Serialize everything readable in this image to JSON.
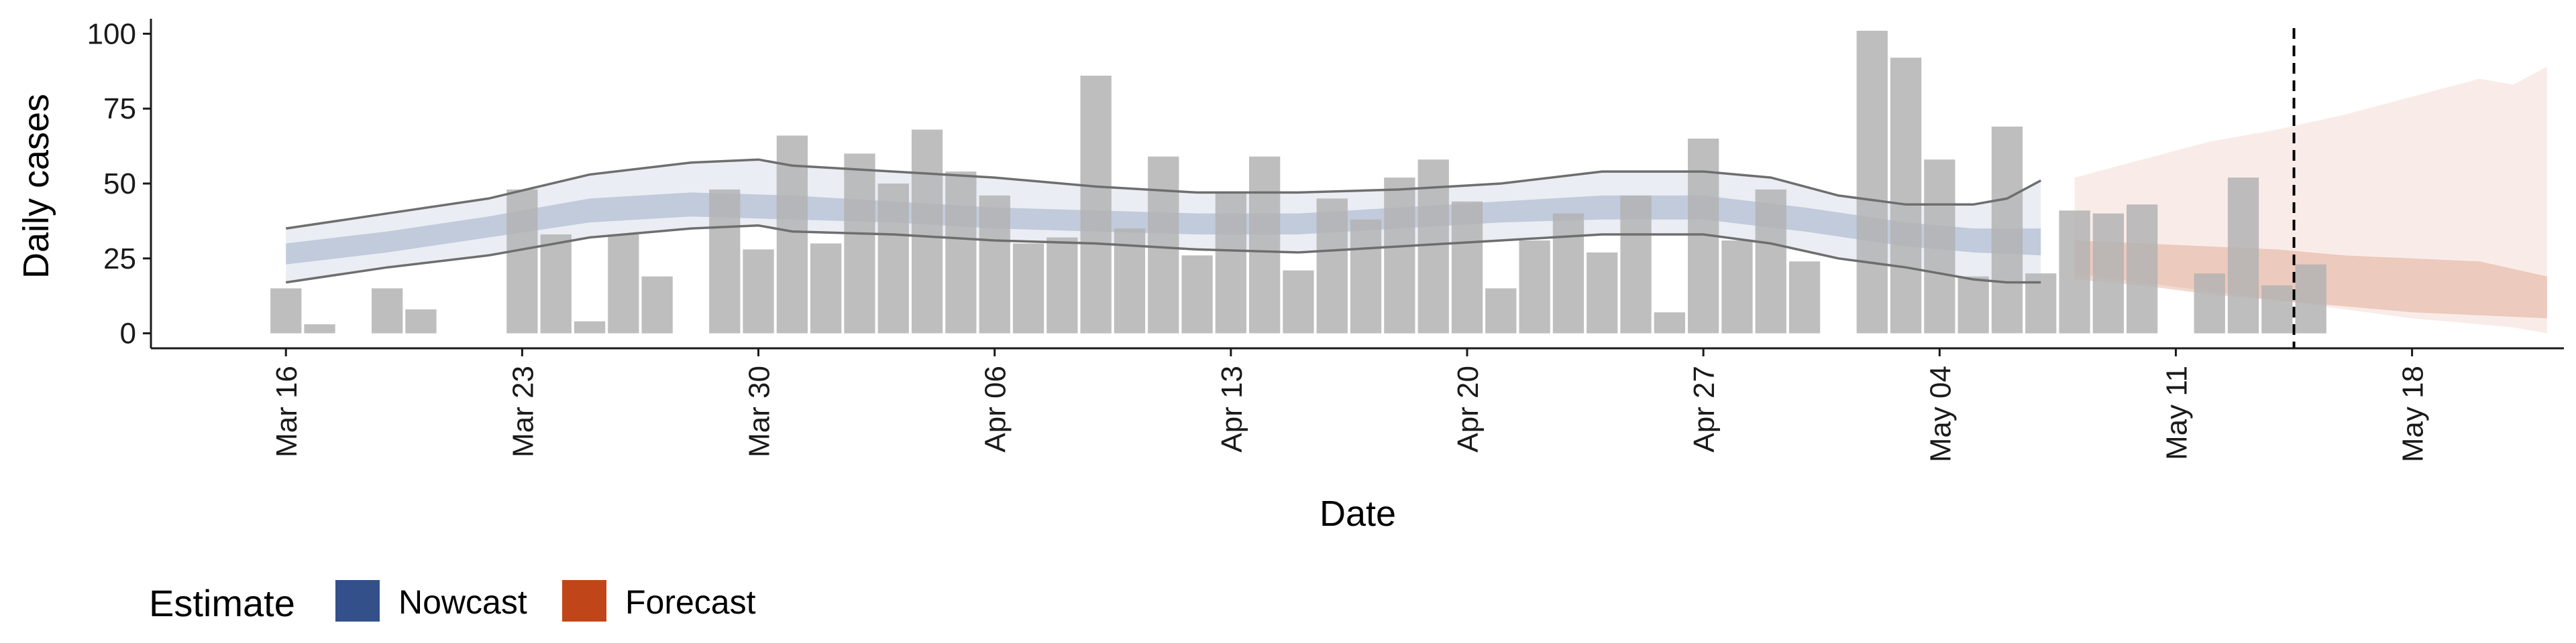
{
  "chart_data": {
    "type": "bar",
    "xlabel": "Date",
    "ylabel": "Daily cases",
    "ylim": [
      -5,
      105
    ],
    "y_ticks": [
      0,
      25,
      50,
      75,
      100
    ],
    "x_ticks": [
      "Mar 16",
      "Mar 23",
      "Mar 30",
      "Apr 06",
      "Apr 13",
      "Apr 20",
      "Apr 27",
      "May 04",
      "May 11",
      "May 18"
    ],
    "start_date_label": "Mar 16",
    "x_range_days": [
      -4,
      67.5
    ],
    "forecast_cutoff_day": 59.5,
    "colors": {
      "bars": "#b3b3b3",
      "nowcast": "#33508a",
      "forecast": "#c0461a",
      "outer_lines": "#6e6e6e",
      "axis": "#1a1a1a"
    },
    "bars": [
      {
        "day": 0,
        "value": 15
      },
      {
        "day": 1,
        "value": 3
      },
      {
        "day": 3,
        "value": 15
      },
      {
        "day": 4,
        "value": 8
      },
      {
        "day": 7,
        "value": 48
      },
      {
        "day": 8,
        "value": 33
      },
      {
        "day": 9,
        "value": 4
      },
      {
        "day": 10,
        "value": 33
      },
      {
        "day": 11,
        "value": 19
      },
      {
        "day": 13,
        "value": 48
      },
      {
        "day": 14,
        "value": 28
      },
      {
        "day": 15,
        "value": 66
      },
      {
        "day": 16,
        "value": 30
      },
      {
        "day": 17,
        "value": 60
      },
      {
        "day": 18,
        "value": 50
      },
      {
        "day": 19,
        "value": 68
      },
      {
        "day": 20,
        "value": 54
      },
      {
        "day": 21,
        "value": 46
      },
      {
        "day": 22,
        "value": 30
      },
      {
        "day": 23,
        "value": 32
      },
      {
        "day": 24,
        "value": 86
      },
      {
        "day": 25,
        "value": 35
      },
      {
        "day": 26,
        "value": 59
      },
      {
        "day": 27,
        "value": 26
      },
      {
        "day": 28,
        "value": 47
      },
      {
        "day": 29,
        "value": 59
      },
      {
        "day": 30,
        "value": 21
      },
      {
        "day": 31,
        "value": 45
      },
      {
        "day": 32,
        "value": 38
      },
      {
        "day": 33,
        "value": 52
      },
      {
        "day": 34,
        "value": 58
      },
      {
        "day": 35,
        "value": 44
      },
      {
        "day": 36,
        "value": 15
      },
      {
        "day": 37,
        "value": 31
      },
      {
        "day": 38,
        "value": 40
      },
      {
        "day": 39,
        "value": 27
      },
      {
        "day": 40,
        "value": 46
      },
      {
        "day": 41,
        "value": 7
      },
      {
        "day": 42,
        "value": 65
      },
      {
        "day": 43,
        "value": 31
      },
      {
        "day": 44,
        "value": 48
      },
      {
        "day": 45,
        "value": 24
      },
      {
        "day": 47,
        "value": 101
      },
      {
        "day": 48,
        "value": 92
      },
      {
        "day": 49,
        "value": 58
      },
      {
        "day": 50,
        "value": 19
      },
      {
        "day": 51,
        "value": 69
      },
      {
        "day": 52,
        "value": 20
      },
      {
        "day": 53,
        "value": 41
      },
      {
        "day": 54,
        "value": 40
      },
      {
        "day": 55,
        "value": 43
      },
      {
        "day": 56,
        "value": 0
      },
      {
        "day": 57,
        "value": 20
      },
      {
        "day": 58,
        "value": 52
      },
      {
        "day": 59,
        "value": 16
      },
      {
        "day": 60,
        "value": 23
      }
    ],
    "series": [
      {
        "name": "Nowcast",
        "outer_band": [
          {
            "day": 0,
            "lower": 17,
            "upper": 35
          },
          {
            "day": 3,
            "lower": 22,
            "upper": 40
          },
          {
            "day": 6,
            "lower": 26,
            "upper": 45
          },
          {
            "day": 9,
            "lower": 32,
            "upper": 53
          },
          {
            "day": 12,
            "lower": 35,
            "upper": 57
          },
          {
            "day": 14,
            "lower": 36,
            "upper": 58
          },
          {
            "day": 15,
            "lower": 34,
            "upper": 56
          },
          {
            "day": 18,
            "lower": 33,
            "upper": 54
          },
          {
            "day": 21,
            "lower": 31,
            "upper": 52
          },
          {
            "day": 24,
            "lower": 30,
            "upper": 49
          },
          {
            "day": 27,
            "lower": 28,
            "upper": 47
          },
          {
            "day": 30,
            "lower": 27,
            "upper": 47
          },
          {
            "day": 33,
            "lower": 29,
            "upper": 48
          },
          {
            "day": 36,
            "lower": 31,
            "upper": 50
          },
          {
            "day": 39,
            "lower": 33,
            "upper": 54
          },
          {
            "day": 42,
            "lower": 33,
            "upper": 54
          },
          {
            "day": 44,
            "lower": 30,
            "upper": 52
          },
          {
            "day": 46,
            "lower": 25,
            "upper": 46
          },
          {
            "day": 48,
            "lower": 22,
            "upper": 43
          },
          {
            "day": 50,
            "lower": 18,
            "upper": 43
          },
          {
            "day": 51,
            "lower": 17,
            "upper": 45
          },
          {
            "day": 52,
            "lower": 17,
            "upper": 51
          }
        ],
        "inner_band": [
          {
            "day": 0,
            "lower": 23,
            "upper": 30
          },
          {
            "day": 3,
            "lower": 27,
            "upper": 34
          },
          {
            "day": 6,
            "lower": 32,
            "upper": 39
          },
          {
            "day": 9,
            "lower": 37,
            "upper": 45
          },
          {
            "day": 12,
            "lower": 39,
            "upper": 47
          },
          {
            "day": 15,
            "lower": 38,
            "upper": 46
          },
          {
            "day": 18,
            "lower": 37,
            "upper": 44
          },
          {
            "day": 21,
            "lower": 35,
            "upper": 42
          },
          {
            "day": 24,
            "lower": 34,
            "upper": 41
          },
          {
            "day": 27,
            "lower": 33,
            "upper": 40
          },
          {
            "day": 30,
            "lower": 33,
            "upper": 40
          },
          {
            "day": 33,
            "lower": 35,
            "upper": 42
          },
          {
            "day": 36,
            "lower": 37,
            "upper": 44
          },
          {
            "day": 39,
            "lower": 38,
            "upper": 46
          },
          {
            "day": 42,
            "lower": 38,
            "upper": 46
          },
          {
            "day": 45,
            "lower": 34,
            "upper": 42
          },
          {
            "day": 48,
            "lower": 29,
            "upper": 37
          },
          {
            "day": 50,
            "lower": 27,
            "upper": 35
          },
          {
            "day": 52,
            "lower": 26,
            "upper": 35
          }
        ]
      },
      {
        "name": "Forecast",
        "outer_band": [
          {
            "day": 53,
            "lower": 20,
            "upper": 52
          },
          {
            "day": 55,
            "lower": 17,
            "upper": 58
          },
          {
            "day": 57,
            "lower": 14,
            "upper": 64
          },
          {
            "day": 59,
            "lower": 11,
            "upper": 68
          },
          {
            "day": 61,
            "lower": 8,
            "upper": 73
          },
          {
            "day": 63,
            "lower": 5,
            "upper": 79
          },
          {
            "day": 65,
            "lower": 3,
            "upper": 85
          },
          {
            "day": 66,
            "lower": 2,
            "upper": 83
          },
          {
            "day": 67,
            "lower": 0,
            "upper": 89
          }
        ],
        "inner_band": [
          {
            "day": 53,
            "lower": 18,
            "upper": 31
          },
          {
            "day": 55,
            "lower": 16,
            "upper": 30
          },
          {
            "day": 57,
            "lower": 13,
            "upper": 29
          },
          {
            "day": 59,
            "lower": 11,
            "upper": 28
          },
          {
            "day": 61,
            "lower": 9,
            "upper": 26
          },
          {
            "day": 63,
            "lower": 7,
            "upper": 25
          },
          {
            "day": 65,
            "lower": 6,
            "upper": 24
          },
          {
            "day": 67,
            "lower": 5,
            "upper": 19
          }
        ]
      }
    ],
    "legend": {
      "title": "Estimate",
      "items": [
        {
          "label": "Nowcast",
          "color": "#33508a"
        },
        {
          "label": "Forecast",
          "color": "#c0461a"
        }
      ],
      "position": "bottom-left"
    },
    "grid": false
  }
}
